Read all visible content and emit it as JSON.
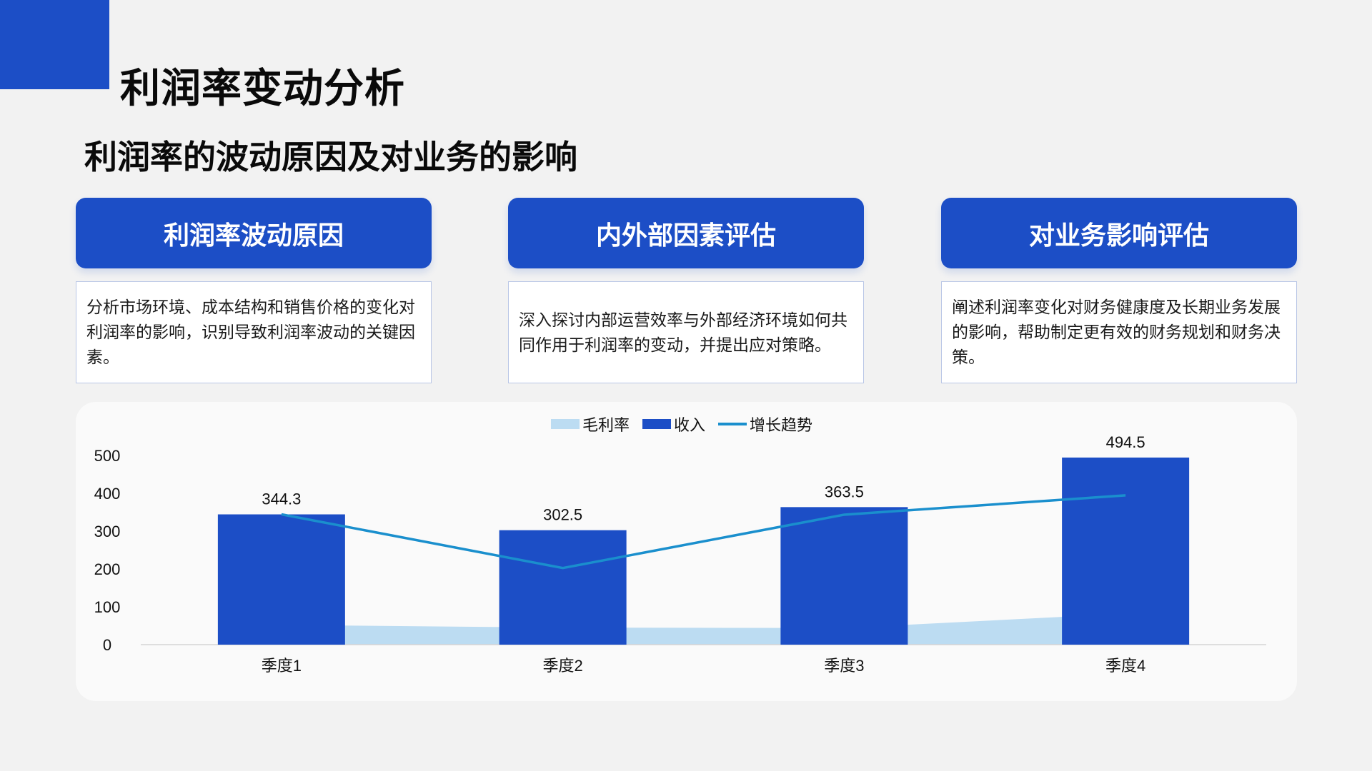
{
  "slide": {
    "title": "利润率变动分析",
    "subtitle": "利润率的波动原因及对业务的影响"
  },
  "cards": [
    {
      "header": "利润率波动原因",
      "body": "分析市场环境、成本结构和销售价格的变化对利润率的影响，识别导致利润率波动的关键因素。"
    },
    {
      "header": "内外部因素评估",
      "body": "深入探讨内部运营效率与外部经济环境如何共同作用于利润率的变动，并提出应对策略。"
    },
    {
      "header": "对业务影响评估",
      "body": "阐述利润率变化对财务健康度及长期业务发展的影响，帮助制定更有效的财务规划和财务决策。"
    }
  ],
  "colors": {
    "accent": "#1c4ec6",
    "area": "#bcdcf2",
    "trend": "#1a8fcd",
    "background": "#f2f2f2"
  },
  "chart_data": {
    "type": "bar",
    "categories": [
      "季度1",
      "季度2",
      "季度3",
      "季度4"
    ],
    "ylim": [
      0,
      500
    ],
    "yticks": [
      0,
      100,
      200,
      300,
      400,
      500
    ],
    "grid": false,
    "legend_position": "top",
    "series": [
      {
        "name": "毛利率",
        "type": "area",
        "color": "#bcdcf2",
        "values": [
          52,
          45,
          44,
          82
        ]
      },
      {
        "name": "收入",
        "type": "bar",
        "color": "#1c4ec6",
        "values": [
          344.3,
          302.5,
          363.5,
          494.5
        ]
      },
      {
        "name": "增长趋势",
        "type": "line",
        "color": "#1a8fcd",
        "values": [
          344.3,
          202.5,
          343.5,
          394.5
        ]
      }
    ],
    "data_labels": [
      "344.3",
      "302.5",
      "363.5",
      "494.5"
    ]
  }
}
